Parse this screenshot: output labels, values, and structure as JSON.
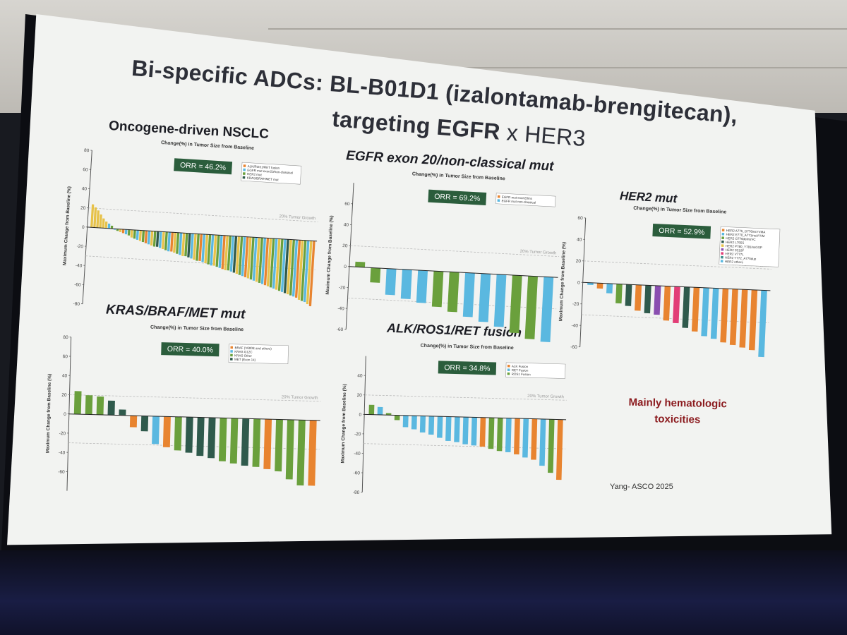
{
  "slide": {
    "title_line1": "Bi-specific ADCs: BL-B01D1 (izalontamab-brengitecan),",
    "title_line2_bold": "targeting EGFR",
    "title_line2_rest": " x HER3",
    "note_line1": "Mainly hematologic",
    "note_line2": "toxicities",
    "credit": "Yang- ASCO 2025"
  },
  "colors": {
    "blue": "#5ab8e0",
    "green": "#6aa03c",
    "dark_green": "#2f5a4c",
    "orange": "#e88430",
    "yellow": "#e7c24a",
    "purple": "#8a4fb0",
    "pink": "#e23d76",
    "teal": "#3a8c8a",
    "orr_box": "#2b5d3c",
    "note": "#8b1a1e"
  },
  "chart_data": [
    {
      "type": "bar",
      "panel_title": "Oncogene-driven NSCLC",
      "title": "Change(%) in Tumor Size from Baseline",
      "ylabel": "Maximum Change from Baseline (%)",
      "ylim": [
        -80,
        80
      ],
      "yticks": [
        "80",
        "60",
        "40",
        "20",
        "0",
        "-20",
        "-40",
        "-60",
        "-80"
      ],
      "reference_label": "20% Tumor Growth",
      "orr": "ORR = 46.2%",
      "legend": [
        "ALK/ROS1/RET fusion",
        "EGFR mut exon20/non-classical",
        "HER2 mut",
        "KRAS/BRAF/MET mut"
      ],
      "values": [
        24,
        21,
        18,
        14,
        10,
        7,
        5,
        3,
        -1,
        -2,
        -3,
        -4,
        -5,
        -6,
        -8,
        -9,
        -10,
        -11,
        -12,
        -13,
        -14,
        -15,
        -16,
        -16,
        -17,
        -18,
        -19,
        -20,
        -20,
        -21,
        -22,
        -23,
        -24,
        -24,
        -25,
        -26,
        -27,
        -28,
        -28,
        -29,
        -30,
        -31,
        -32,
        -32,
        -33,
        -34,
        -35,
        -36,
        -36,
        -37,
        -38,
        -39,
        -40,
        -41,
        -42,
        -43,
        -44,
        -45,
        -46,
        -47,
        -48,
        -49,
        -50,
        -51,
        -52,
        -53,
        -54,
        -55,
        -56,
        -57,
        -58,
        -59,
        -60,
        -62,
        -63,
        -64,
        -66,
        -68
      ],
      "bar_colors": [
        "yellow",
        "yellow",
        "yellow",
        "yellow",
        "yellow",
        "yellow",
        "blue",
        "green",
        "blue",
        "green",
        "yellow",
        "orange",
        "blue",
        "green",
        "yellow",
        "green",
        "blue",
        "yellow",
        "green",
        "orange",
        "blue",
        "yellow",
        "green",
        "dark_green",
        "blue",
        "yellow",
        "green",
        "blue",
        "orange",
        "yellow",
        "green",
        "blue",
        "yellow",
        "green",
        "dark_green",
        "blue",
        "yellow",
        "green",
        "orange",
        "blue",
        "yellow",
        "green",
        "blue",
        "yellow",
        "green",
        "blue",
        "orange",
        "yellow",
        "green",
        "blue",
        "dark_green",
        "yellow",
        "green",
        "blue",
        "orange",
        "yellow",
        "green",
        "blue",
        "yellow",
        "green",
        "blue",
        "orange",
        "yellow",
        "green",
        "blue",
        "yellow",
        "green",
        "blue",
        "dark_green",
        "yellow",
        "green",
        "blue",
        "orange",
        "yellow",
        "green",
        "blue",
        "yellow",
        "orange"
      ]
    },
    {
      "type": "bar",
      "panel_title": "EGFR exon 20/non-classical mut",
      "title": "Change(%) in Tumor Size from Baseline",
      "ylabel": "Maximum Change from Baseline (%)",
      "ylim": [
        -60,
        80
      ],
      "yticks": [
        "60",
        "40",
        "20",
        "0",
        "-20",
        "-40",
        "-60"
      ],
      "reference_label": "20% Tumor Growth",
      "orr": "ORR = 69.2%",
      "legend": [
        "EGFR mut exon20ins",
        "EGFR mut non-classical"
      ],
      "values": [
        5,
        -14,
        -25,
        -28,
        -31,
        -34,
        -38,
        -42,
        -46,
        -50,
        -55,
        -60,
        -62
      ],
      "bar_colors": [
        "green",
        "green",
        "blue",
        "blue",
        "blue",
        "green",
        "green",
        "blue",
        "blue",
        "blue",
        "green",
        "green",
        "blue"
      ]
    },
    {
      "type": "bar",
      "panel_title": "HER2 mut",
      "title": "Change(%) in Tumor Size from Baseline",
      "ylabel": "Maximum Change from Baseline (%)",
      "ylim": [
        -60,
        60
      ],
      "yticks": [
        "60",
        "40",
        "20",
        "0",
        "-20",
        "-40",
        "-60"
      ],
      "reference_label": "20% Tumor Growth",
      "orr": "ORR = 52.9%",
      "legend": [
        "HER2 A775_G776insYVMA",
        "HER2 E770_A771insAYVM",
        "HER2 G776delinsVC",
        "HER2 L755S",
        "HER2 P780_Y781insGSP",
        "HER2 S310F",
        "HER2 V777L",
        "HER2 Y772_A775dup",
        "HER2 others"
      ],
      "values": [
        -2,
        -5,
        -9,
        -18,
        -20,
        -24,
        -26,
        -27,
        -32,
        -34,
        -38,
        -41,
        -45,
        -47,
        -50,
        -52,
        -54,
        -56,
        -62
      ],
      "bar_colors": [
        "blue",
        "orange",
        "blue",
        "green",
        "dark_green",
        "orange",
        "dark_green",
        "purple",
        "orange",
        "pink",
        "dark_green",
        "orange",
        "blue",
        "blue",
        "orange",
        "orange",
        "orange",
        "orange",
        "blue"
      ]
    },
    {
      "type": "bar",
      "panel_title": "KRAS/BRAF/MET mut",
      "title": "Change(%) in Tumor Size from Baseline",
      "ylabel": "Maximum Change from Baseline (%)",
      "ylim": [
        -80,
        80
      ],
      "yticks": [
        "80",
        "60",
        "40",
        "20",
        "0",
        "-20",
        "-40",
        "-60"
      ],
      "reference_label": "20% Tumor Growth",
      "orr": "ORR = 40.0%",
      "legend": [
        "BRAF (V600E and others)",
        "KRAS G12C",
        "KRAS Other",
        "MET (Exon 14)"
      ],
      "values": [
        24,
        20,
        19,
        15,
        6,
        -12,
        -16,
        -29,
        -32,
        -35,
        -37,
        -40,
        -42,
        -45,
        -47,
        -49,
        -50,
        -52,
        -54,
        -62,
        -68,
        -68
      ],
      "bar_colors": [
        "green",
        "green",
        "green",
        "dark_green",
        "dark_green",
        "orange",
        "dark_green",
        "blue",
        "orange",
        "green",
        "dark_green",
        "dark_green",
        "dark_green",
        "green",
        "green",
        "dark_green",
        "green",
        "orange",
        "green",
        "green",
        "green",
        "orange"
      ]
    },
    {
      "type": "bar",
      "panel_title": "ALK/ROS1/RET fusion",
      "title": "Change(%) in Tumor Size from Baseline",
      "ylabel": "Maximum Change from Baseline (%)",
      "ylim": [
        -80,
        60
      ],
      "yticks": [
        "40",
        "20",
        "0",
        "-20",
        "-40",
        "-60",
        "-80"
      ],
      "reference_label": "20% Tumor Growth",
      "orr": "ORR = 34.8%",
      "legend": [
        "ALK Fusion",
        "RET Fusion",
        "ROS1 Fusion"
      ],
      "values": [
        10,
        8,
        2,
        -5,
        -12,
        -14,
        -17,
        -19,
        -22,
        -25,
        -26,
        -28,
        -29,
        -30,
        -32,
        -34,
        -35,
        -37,
        -40,
        -42,
        -48,
        -55,
        -62
      ],
      "bar_colors": [
        "green",
        "blue",
        "green",
        "green",
        "blue",
        "blue",
        "blue",
        "blue",
        "blue",
        "blue",
        "blue",
        "blue",
        "blue",
        "orange",
        "green",
        "green",
        "blue",
        "orange",
        "blue",
        "orange",
        "blue",
        "green",
        "orange"
      ]
    }
  ]
}
